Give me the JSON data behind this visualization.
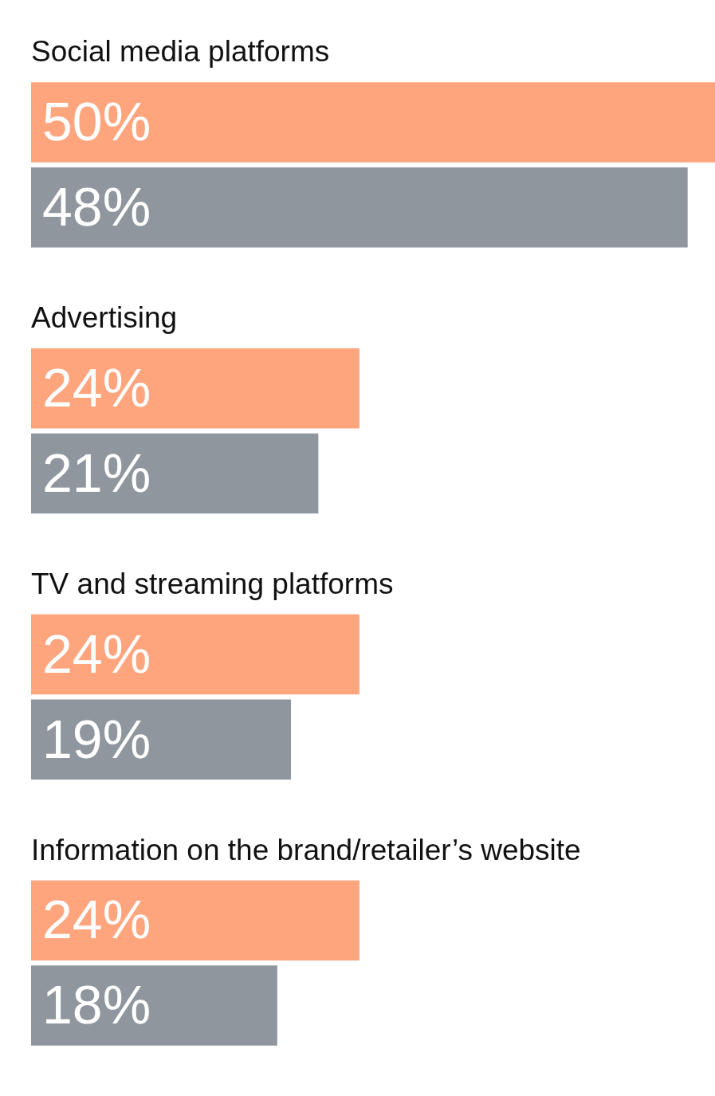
{
  "chart_data": {
    "type": "bar",
    "orientation": "horizontal",
    "legend": false,
    "tick_labels": false,
    "categories": [
      "Social media platforms",
      "Advertising",
      "TV and streaming platforms",
      "Information on the brand/retailer’s website"
    ],
    "series": [
      {
        "color": "#ffa57e",
        "values": [
          50,
          24,
          24,
          24
        ],
        "value_labels": [
          "50%",
          "24%",
          "24%",
          "24%"
        ]
      },
      {
        "color": "#90969e",
        "values": [
          48,
          21,
          19,
          18
        ],
        "value_labels": [
          "48%",
          "21%",
          "19%",
          "18%"
        ]
      }
    ]
  }
}
